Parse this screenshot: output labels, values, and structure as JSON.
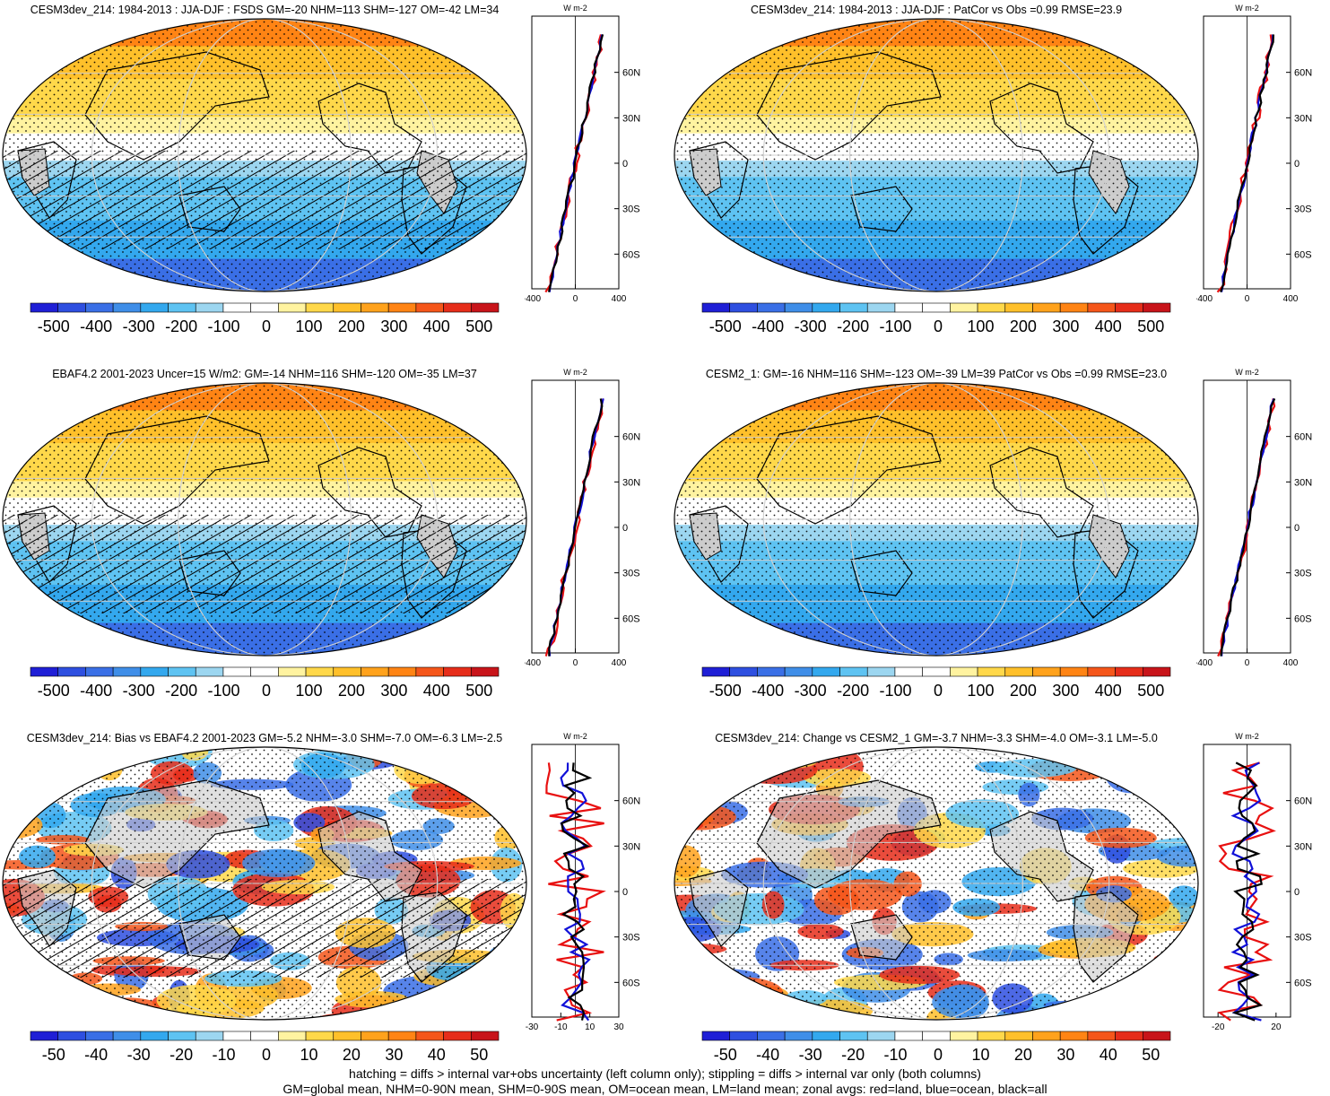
{
  "panels": [
    {
      "title": "CESM3dev_214: 1984-2013 : JJA-DJF : FSDS GM=-20 NHM=113 SHM=-127 OM=-42 LM=34",
      "field": "mean",
      "hatch": true,
      "colorbar_labels": [
        "-500",
        "-400",
        "-300",
        "-200",
        "-100",
        "0",
        "100",
        "200",
        "300",
        "400",
        "500"
      ],
      "zonal_units": "W m-2",
      "zonal_xticks": [
        "-400",
        "0",
        "400"
      ],
      "zonal_xlim": [
        -400,
        400
      ],
      "lat_labels": [
        "60N",
        "30N",
        "0",
        "30S",
        "60S"
      ]
    },
    {
      "title": "CESM3dev_214: 1984-2013 : JJA-DJF : PatCor vs Obs =0.99 RMSE=23.9",
      "field": "mean",
      "hatch": false,
      "colorbar_labels": [
        "-500",
        "-400",
        "-300",
        "-200",
        "-100",
        "0",
        "100",
        "200",
        "300",
        "400",
        "500"
      ],
      "zonal_units": "W m-2",
      "zonal_xticks": [
        "-400",
        "0",
        "400"
      ],
      "zonal_xlim": [
        -400,
        400
      ],
      "lat_labels": [
        "60N",
        "30N",
        "0",
        "30S",
        "60S"
      ]
    },
    {
      "title": "EBAF4.2 2001-2023 Uncer=15 W/m2: GM=-14 NHM=116 SHM=-120 OM=-35 LM=37",
      "field": "mean",
      "hatch": true,
      "colorbar_labels": [
        "-500",
        "-400",
        "-300",
        "-200",
        "-100",
        "0",
        "100",
        "200",
        "300",
        "400",
        "500"
      ],
      "zonal_units": "W m-2",
      "zonal_xticks": [
        "-400",
        "0",
        "400"
      ],
      "zonal_xlim": [
        -400,
        400
      ],
      "lat_labels": [
        "60N",
        "30N",
        "0",
        "30S",
        "60S"
      ]
    },
    {
      "title": "CESM2_1: GM=-16 NHM=116 SHM=-123 OM=-39 LM=39 PatCor vs Obs =0.99 RMSE=23.0",
      "field": "mean",
      "hatch": false,
      "colorbar_labels": [
        "-500",
        "-400",
        "-300",
        "-200",
        "-100",
        "0",
        "100",
        "200",
        "300",
        "400",
        "500"
      ],
      "zonal_units": "W m-2",
      "zonal_xticks": [
        "-400",
        "0",
        "400"
      ],
      "zonal_xlim": [
        -400,
        400
      ],
      "lat_labels": [
        "60N",
        "30N",
        "0",
        "30S",
        "60S"
      ]
    },
    {
      "title": "CESM3dev_214: Bias vs EBAF4.2 2001-2023 GM=-5.2 NHM=-3.0 SHM=-7.0 OM=-6.3 LM=-2.5",
      "field": "diff",
      "hatch": true,
      "colorbar_labels": [
        "-50",
        "-40",
        "-30",
        "-20",
        "-10",
        "0",
        "10",
        "20",
        "30",
        "40",
        "50"
      ],
      "zonal_units": "W m-2",
      "zonal_xticks": [
        "-30",
        "-10",
        "10",
        "30"
      ],
      "zonal_xlim": [
        -30,
        30
      ],
      "lat_labels": [
        "60N",
        "30N",
        "0",
        "30S",
        "60S"
      ]
    },
    {
      "title": "CESM3dev_214: Change vs CESM2_1 GM=-3.7 NHM=-3.3 SHM=-4.0 OM=-3.1 LM=-5.0",
      "field": "diff",
      "hatch": false,
      "colorbar_labels": [
        "-50",
        "-40",
        "-30",
        "-20",
        "-10",
        "0",
        "10",
        "20",
        "30",
        "40",
        "50"
      ],
      "zonal_units": "W m-2",
      "zonal_xticks": [
        "-20",
        "20"
      ],
      "zonal_xlim": [
        -30,
        30
      ],
      "lat_labels": [
        "60N",
        "30N",
        "0",
        "30S",
        "60S"
      ]
    }
  ],
  "palette": [
    "#1f1fd6",
    "#2e4fe0",
    "#3a6fe6",
    "#3f8ee8",
    "#33a8ee",
    "#5ec3f2",
    "#9cd6f0",
    "#ffffff",
    "#ffffff",
    "#fff3a0",
    "#ffd84a",
    "#ffc02a",
    "#ffa21c",
    "#ff8414",
    "#f5561a",
    "#e62d1a",
    "#c8141a"
  ],
  "zonal_series": [
    {
      "name": "land",
      "color": "#e81010"
    },
    {
      "name": "ocean",
      "color": "#1010d8"
    },
    {
      "name": "all",
      "color": "#000000"
    }
  ],
  "footer": {
    "line1": "hatching = diffs > internal var+obs uncertainty (left column only); stippling = diffs > internal var only (both columns)",
    "line2": "GM=global mean, NHM=0-90N mean, SHM=0-90S mean, OM=ocean mean, LM=land mean; zonal avgs: red=land, blue=ocean, black=all"
  }
}
